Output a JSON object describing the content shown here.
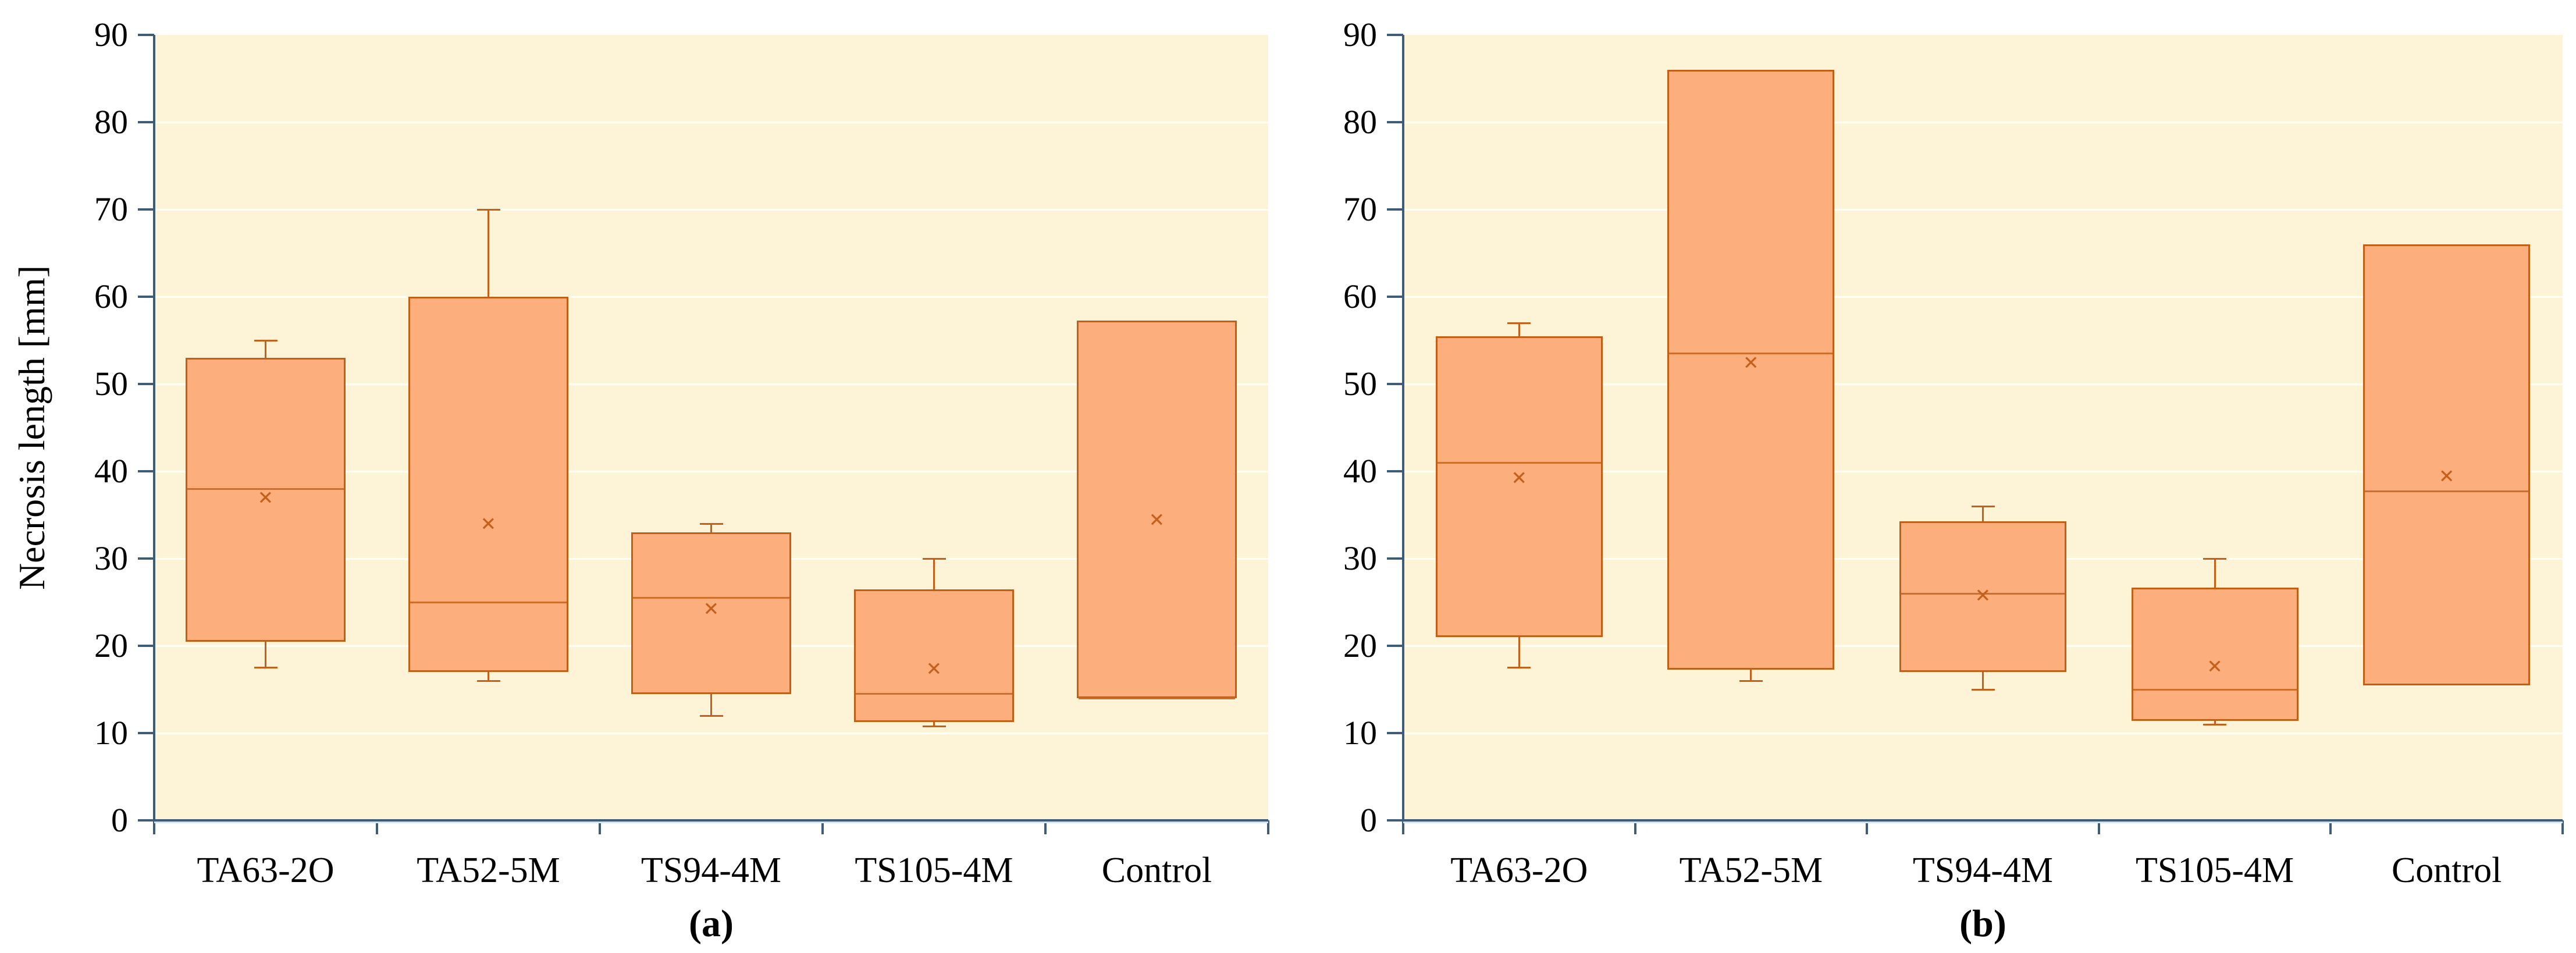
{
  "y_axis": {
    "title": "Necrosis length [mm]",
    "min": 0,
    "max": 90,
    "step": 10,
    "tick_labels": [
      "0",
      "10",
      "20",
      "30",
      "40",
      "50",
      "60",
      "70",
      "80",
      "90"
    ]
  },
  "categories": [
    "TA63-2O",
    "TA52-5M",
    "TS94-4M",
    "TS105-4M",
    "Control"
  ],
  "colors": {
    "plot_bg": "#FDF3D6",
    "gridline": "#FFFFFF",
    "box_fill": "#FCAE7C",
    "box_border": "#C05F15",
    "median": "#CF6E28",
    "whisker": "#C4601A",
    "mean_marker": "#C4601A",
    "axis": "#3E5C77",
    "axis_glow": "#CFE4F5",
    "text": "#000000"
  },
  "chart_data": [
    {
      "type": "box",
      "title": "(a)",
      "ylabel": "Necrosis length [mm]",
      "ylim": [
        0,
        90
      ],
      "grid": true,
      "legend_position": "none",
      "categories": [
        "TA63-2O",
        "TA52-5M",
        "TS94-4M",
        "TS105-4M",
        "Control"
      ],
      "series": [
        {
          "name": "TA63-2O",
          "min": 17.5,
          "q1": 20.5,
          "median": 38,
          "q3": 53,
          "max": 55,
          "mean": 37
        },
        {
          "name": "TA52-5M",
          "min": 16,
          "q1": 17,
          "median": 25,
          "q3": 60,
          "max": 70,
          "mean": 34
        },
        {
          "name": "TS94-4M",
          "min": 12,
          "q1": 14.5,
          "median": 25.5,
          "q3": 33,
          "max": 34,
          "mean": 24.3
        },
        {
          "name": "TS105-4M",
          "min": 10.8,
          "q1": 11.3,
          "median": 14.5,
          "q3": 26.5,
          "max": 30,
          "mean": 17.4
        },
        {
          "name": "Control",
          "min": 14,
          "q1": 14,
          "median": 14,
          "q3": 57.3,
          "max": 57.3,
          "mean": 34.5
        }
      ]
    },
    {
      "type": "box",
      "title": "(b)",
      "ylabel": "Necrosis length [mm]",
      "ylim": [
        0,
        90
      ],
      "grid": true,
      "legend_position": "none",
      "categories": [
        "TA63-2O",
        "TA52-5M",
        "TS94-4M",
        "TS105-4M",
        "Control"
      ],
      "series": [
        {
          "name": "TA63-2O",
          "min": 17.5,
          "q1": 21,
          "median": 41,
          "q3": 55.5,
          "max": 57,
          "mean": 39.3
        },
        {
          "name": "TA52-5M",
          "min": 16,
          "q1": 17.3,
          "median": 53.5,
          "q3": 86,
          "max": 86,
          "mean": 52.5
        },
        {
          "name": "TS94-4M",
          "min": 15,
          "q1": 17,
          "median": 26,
          "q3": 34.3,
          "max": 36,
          "mean": 25.8
        },
        {
          "name": "TS105-4M",
          "min": 11,
          "q1": 11.4,
          "median": 15,
          "q3": 26.7,
          "max": 30,
          "mean": 17.7
        },
        {
          "name": "Control",
          "min": 15.5,
          "q1": 15.5,
          "median": 37.7,
          "q3": 66,
          "max": 66,
          "mean": 39.5
        }
      ]
    }
  ],
  "mean_marker_glyph": "×"
}
